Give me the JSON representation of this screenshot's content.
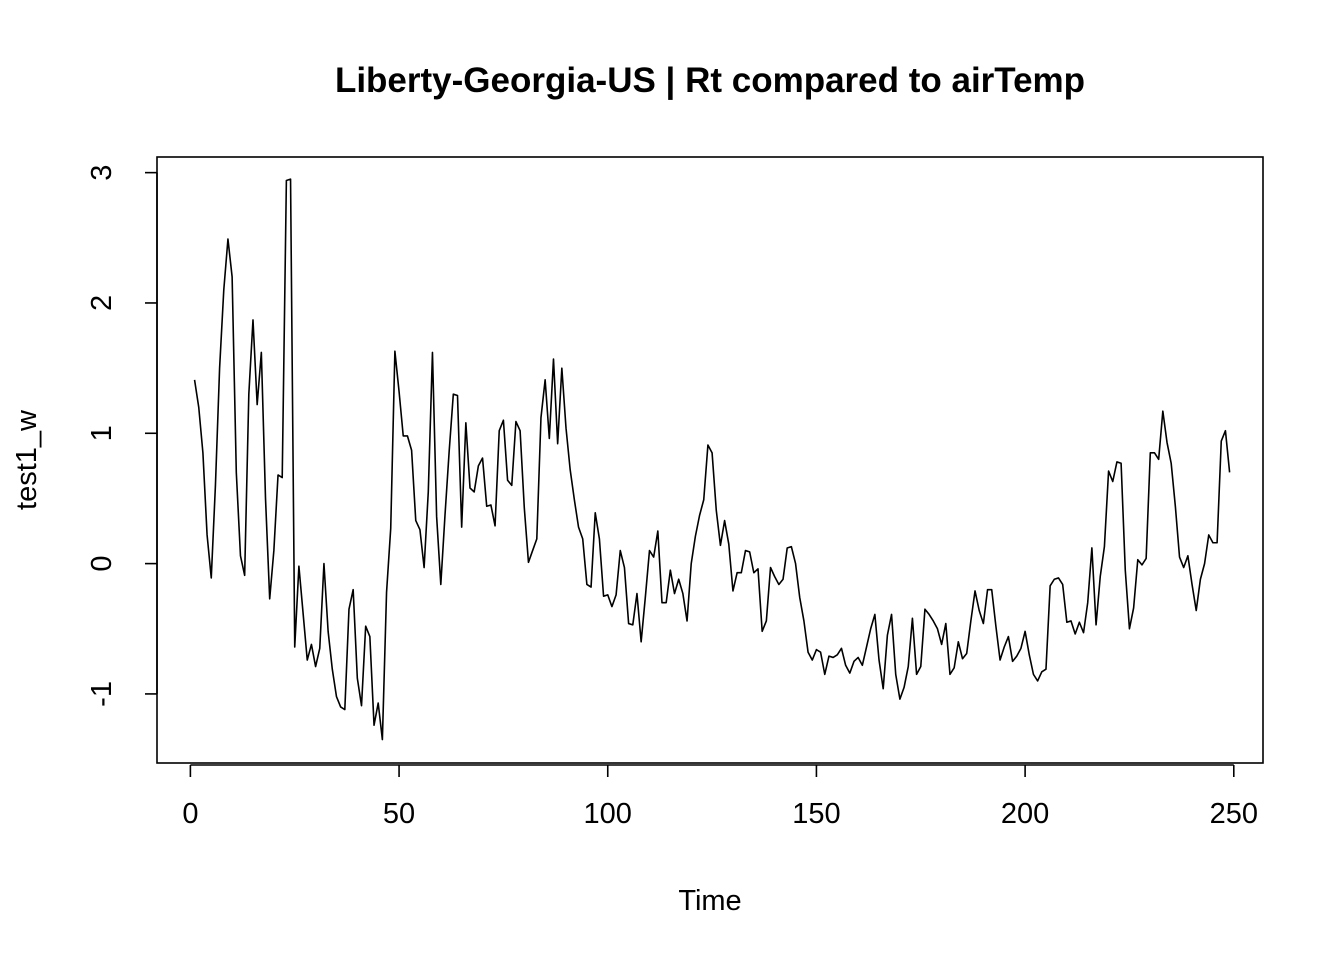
{
  "chart_data": {
    "type": "line",
    "title": "Liberty-Georgia-US | Rt compared to airTemp",
    "xlabel": "Time",
    "ylabel": "test1_w",
    "xlim": [
      -8,
      257
    ],
    "ylim": [
      -1.53,
      3.12
    ],
    "xticks": [
      0,
      50,
      100,
      150,
      200,
      250
    ],
    "xtick_labels": [
      "0",
      "50",
      "100",
      "150",
      "200",
      "250"
    ],
    "yticks": [
      -1,
      0,
      1,
      2,
      3
    ],
    "ytick_labels": [
      "-1",
      "0",
      "1",
      "2",
      "3"
    ],
    "grid": false,
    "color": "#000000",
    "x_start": 1,
    "values": [
      1.41,
      1.2,
      0.85,
      0.22,
      -0.11,
      0.6,
      1.5,
      2.1,
      2.49,
      2.2,
      0.7,
      0.06,
      -0.09,
      1.3,
      1.87,
      1.22,
      1.62,
      0.5,
      -0.27,
      0.1,
      0.68,
      0.66,
      2.94,
      2.95,
      -0.64,
      -0.02,
      -0.38,
      -0.74,
      -0.62,
      -0.79,
      -0.65,
      0.0,
      -0.52,
      -0.81,
      -1.02,
      -1.1,
      -1.12,
      -0.35,
      -0.2,
      -0.88,
      -1.09,
      -0.48,
      -0.56,
      -1.24,
      -1.07,
      -1.35,
      -0.22,
      0.27,
      1.63,
      1.32,
      0.98,
      0.98,
      0.87,
      0.33,
      0.26,
      -0.03,
      0.55,
      1.62,
      0.36,
      -0.16,
      0.37,
      0.86,
      1.3,
      1.29,
      0.28,
      1.08,
      0.58,
      0.55,
      0.75,
      0.81,
      0.44,
      0.45,
      0.29,
      1.02,
      1.1,
      0.64,
      0.6,
      1.09,
      1.02,
      0.43,
      0.01,
      0.1,
      0.19,
      1.12,
      1.41,
      0.96,
      1.57,
      0.92,
      1.5,
      1.04,
      0.72,
      0.49,
      0.28,
      0.19,
      -0.16,
      -0.18,
      0.39,
      0.19,
      -0.25,
      -0.24,
      -0.33,
      -0.24,
      0.1,
      -0.03,
      -0.46,
      -0.47,
      -0.23,
      -0.6,
      -0.26,
      0.1,
      0.05,
      0.25,
      -0.3,
      -0.3,
      -0.05,
      -0.23,
      -0.12,
      -0.23,
      -0.44,
      0.0,
      0.21,
      0.37,
      0.49,
      0.91,
      0.85,
      0.41,
      0.14,
      0.33,
      0.15,
      -0.21,
      -0.07,
      -0.07,
      0.1,
      0.09,
      -0.07,
      -0.04,
      -0.52,
      -0.44,
      -0.03,
      -0.1,
      -0.16,
      -0.12,
      0.12,
      0.13,
      0.0,
      -0.26,
      -0.44,
      -0.68,
      -0.74,
      -0.66,
      -0.68,
      -0.85,
      -0.71,
      -0.72,
      -0.7,
      -0.65,
      -0.78,
      -0.84,
      -0.75,
      -0.72,
      -0.78,
      -0.64,
      -0.5,
      -0.39,
      -0.74,
      -0.96,
      -0.55,
      -0.39,
      -0.85,
      -1.04,
      -0.95,
      -0.79,
      -0.42,
      -0.85,
      -0.79,
      -0.35,
      -0.39,
      -0.44,
      -0.5,
      -0.62,
      -0.46,
      -0.85,
      -0.8,
      -0.6,
      -0.73,
      -0.69,
      -0.44,
      -0.21,
      -0.36,
      -0.46,
      -0.2,
      -0.2,
      -0.48,
      -0.74,
      -0.64,
      -0.56,
      -0.75,
      -0.71,
      -0.65,
      -0.52,
      -0.7,
      -0.85,
      -0.9,
      -0.83,
      -0.81,
      -0.17,
      -0.12,
      -0.11,
      -0.16,
      -0.45,
      -0.44,
      -0.54,
      -0.45,
      -0.53,
      -0.3,
      0.12,
      -0.47,
      -0.1,
      0.13,
      0.71,
      0.63,
      0.78,
      0.77,
      -0.05,
      -0.5,
      -0.34,
      0.03,
      -0.01,
      0.04,
      0.85,
      0.85,
      0.8,
      1.17,
      0.93,
      0.77,
      0.44,
      0.05,
      -0.03,
      0.06,
      -0.16,
      -0.36,
      -0.12,
      0.0,
      0.22,
      0.16,
      0.16,
      0.94,
      1.02,
      0.7
    ]
  }
}
